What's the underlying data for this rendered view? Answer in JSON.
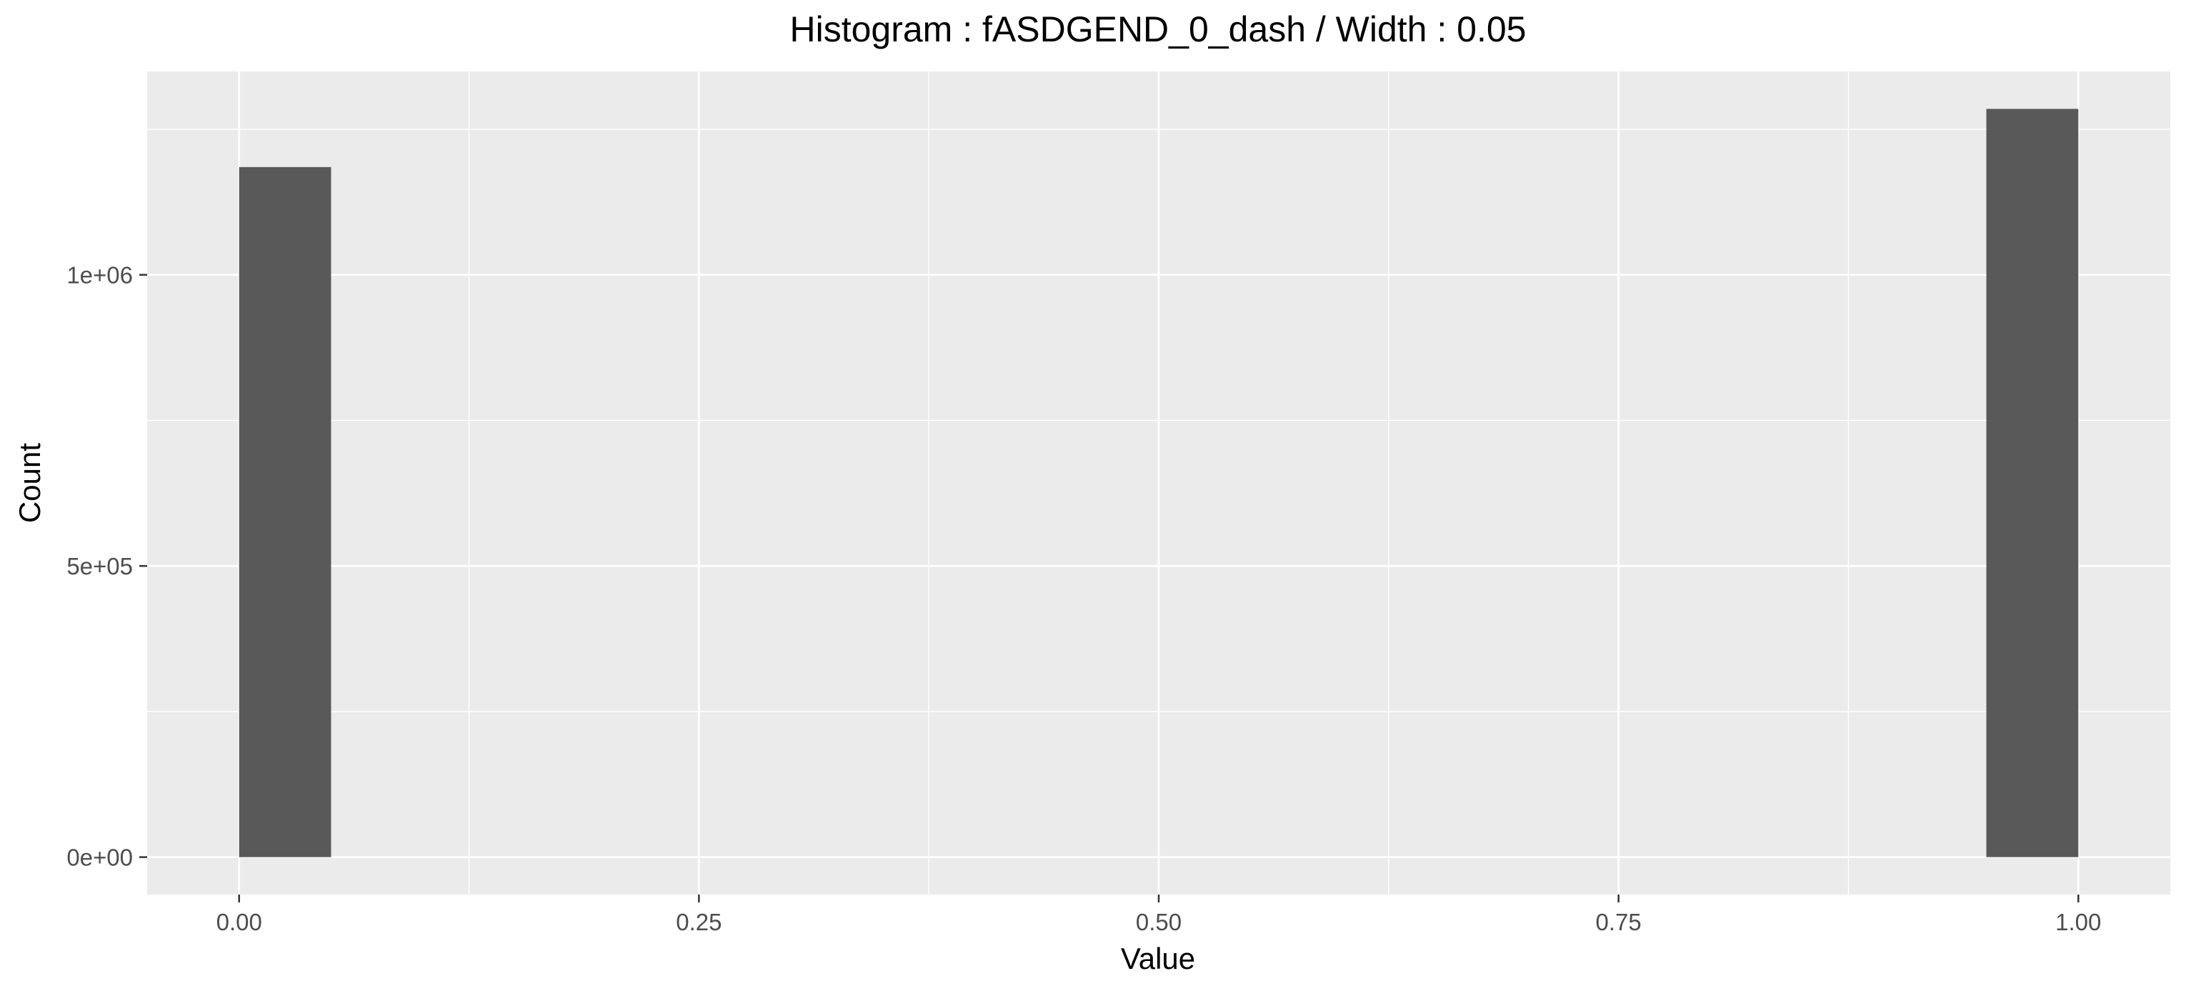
{
  "chart_data": {
    "type": "bar",
    "title": "Histogram : fASDGEND_0_dash / Width : 0.05",
    "xlabel": "Value",
    "ylabel": "Count",
    "bin_width": 0.05,
    "bins": [
      {
        "x": 0.0,
        "count": 1185000
      },
      {
        "x": 1.0,
        "count": 1285000
      }
    ],
    "x_ticks": [
      0,
      0.25,
      0.5,
      0.75,
      1
    ],
    "x_tick_labels": [
      "0.00",
      "0.25",
      "0.50",
      "0.75",
      "1.00"
    ],
    "y_ticks": [
      0,
      500000,
      1000000
    ],
    "y_tick_labels": [
      "0e+00",
      "5e+05",
      "1e+06"
    ],
    "xlim": [
      -0.05,
      1.05
    ],
    "ylim": [
      -64250,
      1349250
    ],
    "grid": true,
    "legend": "none",
    "colors": {
      "bar_fill": "#595959",
      "panel_background": "#ebebeb",
      "gridline": "#ffffff",
      "tick_label": "#4d4d4d",
      "text": "#000000"
    }
  }
}
